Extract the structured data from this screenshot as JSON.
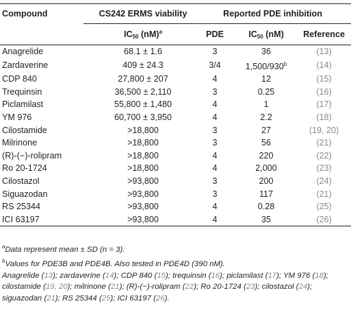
{
  "headers": {
    "compound": "Compound",
    "viability": "CS242 ERMS viability",
    "pde_inhibition": "Reported PDE inhibition",
    "ic50_pre": "IC",
    "ic50_sub": "50",
    "ic50_unit": " (nM)",
    "ic50_sup": "a",
    "pde": "PDE",
    "ic50_pde_pre": "IC",
    "ic50_pde_sub": "50",
    "ic50_pde_unit": " (nM)",
    "reference": "Reference"
  },
  "rows": [
    {
      "compound": "Anagrelide",
      "viability": "68.1 ± 1.6",
      "pde": "3",
      "ic50": "36",
      "ic50_sup": "",
      "reference": "(13)"
    },
    {
      "compound": "Zardaverine",
      "viability": "409 ± 24.3",
      "pde": "3/4",
      "ic50": "1,500/930",
      "ic50_sup": "b",
      "reference": "(14)"
    },
    {
      "compound": "CDP 840",
      "viability": "27,800 ± 207",
      "pde": "4",
      "ic50": "12",
      "ic50_sup": "",
      "reference": "(15)"
    },
    {
      "compound": "Trequinsin",
      "viability": "36,500 ± 2,110",
      "pde": "3",
      "ic50": "0.25",
      "ic50_sup": "",
      "reference": "(16)"
    },
    {
      "compound": "Piclamilast",
      "viability": "55,800 ± 1,480",
      "pde": "4",
      "ic50": "1",
      "ic50_sup": "",
      "reference": "(17)"
    },
    {
      "compound": "YM 976",
      "viability": "60,700 ± 3,950",
      "pde": "4",
      "ic50": "2.2",
      "ic50_sup": "",
      "reference": "(18)"
    },
    {
      "compound": "Cilostamide",
      "viability": ">18,800",
      "pde": "3",
      "ic50": "27",
      "ic50_sup": "",
      "reference": "(19, 20)"
    },
    {
      "compound": "Milrinone",
      "viability": ">18,800",
      "pde": "3",
      "ic50": "56",
      "ic50_sup": "",
      "reference": "(21)"
    },
    {
      "compound": "(R)-(−)-rolipram",
      "viability": ">18,800",
      "pde": "4",
      "ic50": "220",
      "ic50_sup": "",
      "reference": "(22)"
    },
    {
      "compound": "Ro 20-1724",
      "viability": ">18,800",
      "pde": "4",
      "ic50": "2,000",
      "ic50_sup": "",
      "reference": "(23)"
    },
    {
      "compound": "Cilostazol",
      "viability": ">93,800",
      "pde": "3",
      "ic50": "200",
      "ic50_sup": "",
      "reference": "(24)"
    },
    {
      "compound": "Siguazodan",
      "viability": ">93,800",
      "pde": "3",
      "ic50": "117",
      "ic50_sup": "",
      "reference": "(21)"
    },
    {
      "compound": "RS 25344",
      "viability": ">93,800",
      "pde": "4",
      "ic50": "0.28",
      "ic50_sup": "",
      "reference": "(25)"
    },
    {
      "compound": "ICI 63197",
      "viability": ">93,800",
      "pde": "4",
      "ic50": "35",
      "ic50_sup": "",
      "reference": "(26)"
    }
  ],
  "footnotes": {
    "a_mark": "a",
    "a_text": "Data represent mean ± SD (n = 3).",
    "b_mark": "b",
    "b_text": "Values for PDE3B and PDE4B. Also tested in PDE4D (390 nM).",
    "citations": [
      {
        "name": "Anagrelide",
        "ref": "13",
        "sep": "; "
      },
      {
        "name": "zardaverine",
        "ref": "14",
        "sep": "; "
      },
      {
        "name": "CDP 840",
        "ref": "15",
        "sep": "; "
      },
      {
        "name": "trequinsin",
        "ref": "16",
        "sep": "; "
      },
      {
        "name": "piclamilast",
        "ref": "17",
        "sep": "; "
      },
      {
        "name": "YM 976",
        "ref": "18",
        "sep": "; "
      },
      {
        "name": "cilostamide",
        "ref": "19, 20",
        "sep": "; "
      },
      {
        "name": "milrinone",
        "ref": "21",
        "sep": "; "
      },
      {
        "name": "(R)-(−)-rolipram",
        "ref": "22",
        "sep": "; "
      },
      {
        "name": "Ro 20-1724",
        "ref": "23",
        "sep": "; "
      },
      {
        "name": "cilostazol",
        "ref": "24",
        "sep": "; "
      },
      {
        "name": "siguazodan",
        "ref": "21",
        "sep": "; "
      },
      {
        "name": "RS 25344",
        "ref": "25",
        "sep": "; "
      },
      {
        "name": "ICI 63197",
        "ref": "26",
        "sep": "."
      }
    ]
  },
  "colors": {
    "text": "#231f20",
    "reference": "#8a8a8a"
  }
}
